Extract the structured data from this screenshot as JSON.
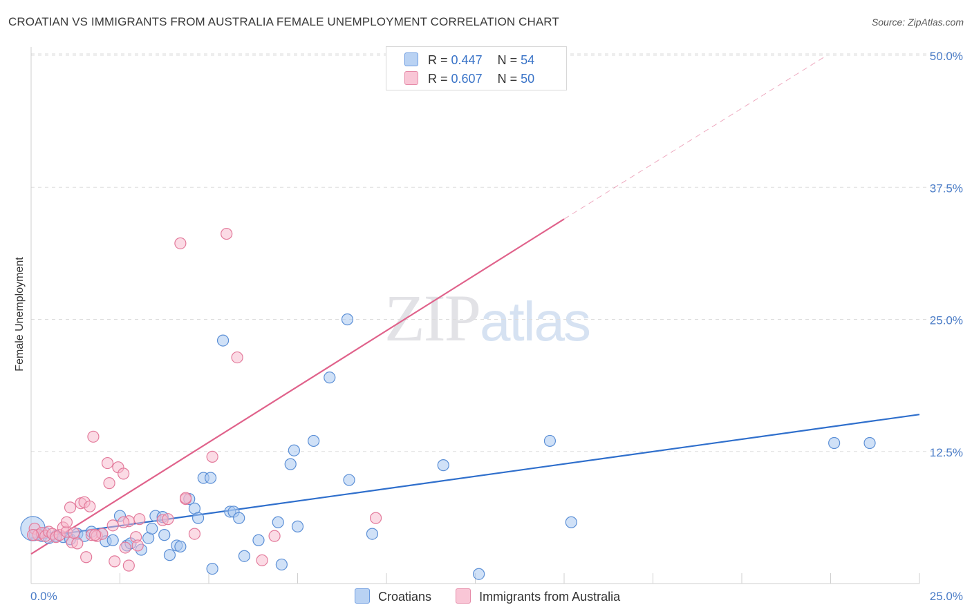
{
  "header": {
    "title": "CROATIAN VS IMMIGRANTS FROM AUSTRALIA FEMALE UNEMPLOYMENT CORRELATION CHART",
    "source": "Source: ZipAtlas.com"
  },
  "watermark": {
    "zip": "ZIP",
    "atlas": "atlas"
  },
  "legend": {
    "rows": [
      {
        "r_label": "R =",
        "r_value": "0.447",
        "n_label": "N =",
        "n_value": "54"
      },
      {
        "r_label": "R =",
        "r_value": "0.607",
        "n_label": "N =",
        "n_value": "50"
      }
    ]
  },
  "bottom_legend": {
    "items": [
      {
        "label": "Croatians"
      },
      {
        "label": "Immigrants from Australia"
      }
    ]
  },
  "chart_data": {
    "type": "scatter",
    "title": "CROATIAN VS IMMIGRANTS FROM AUSTRALIA FEMALE UNEMPLOYMENT CORRELATION CHART",
    "xlabel": "",
    "ylabel": "Female Unemployment",
    "xlim": [
      0,
      25
    ],
    "ylim": [
      0,
      50
    ],
    "x_tick_labels": [
      "0.0%",
      "25.0%"
    ],
    "y_ticks": [
      12.5,
      25.0,
      37.5,
      50.0
    ],
    "y_tick_labels": [
      "12.5%",
      "25.0%",
      "37.5%",
      "50.0%"
    ],
    "grid": true,
    "colors": {
      "croatians_fill": "#a9c8f0",
      "croatians_stroke": "#5b8fd6",
      "croatians_line": "#2f6fcc",
      "australia_fill": "#f7b7cb",
      "australia_stroke": "#e37a9b",
      "australia_line": "#e0628b",
      "grid": "#dddddd",
      "axis": "#cfcfcf"
    },
    "series": [
      {
        "name": "Croatians",
        "trend": {
          "x0": 0,
          "y0": 4.3,
          "x1": 25,
          "y1": 16.0
        },
        "points": [
          [
            0.1,
            4.6
          ],
          [
            0.3,
            4.5
          ],
          [
            0.4,
            4.8
          ],
          [
            0.5,
            4.3
          ],
          [
            0.7,
            4.5
          ],
          [
            0.9,
            4.4
          ],
          [
            1.1,
            4.2
          ],
          [
            1.3,
            4.7
          ],
          [
            1.5,
            4.5
          ],
          [
            1.7,
            4.9
          ],
          [
            2.0,
            4.7
          ],
          [
            2.1,
            4.0
          ],
          [
            2.3,
            4.1
          ],
          [
            2.5,
            6.4
          ],
          [
            2.7,
            3.6
          ],
          [
            2.8,
            3.8
          ],
          [
            3.1,
            3.2
          ],
          [
            3.3,
            4.3
          ],
          [
            3.4,
            5.2
          ],
          [
            3.5,
            6.4
          ],
          [
            3.7,
            6.3
          ],
          [
            3.75,
            4.6
          ],
          [
            3.9,
            2.7
          ],
          [
            4.1,
            3.6
          ],
          [
            4.2,
            3.5
          ],
          [
            4.45,
            8.0
          ],
          [
            4.6,
            7.1
          ],
          [
            4.7,
            6.2
          ],
          [
            4.85,
            10.0
          ],
          [
            5.05,
            10.0
          ],
          [
            5.1,
            1.4
          ],
          [
            5.4,
            23.0
          ],
          [
            5.6,
            6.8
          ],
          [
            5.7,
            6.8
          ],
          [
            5.85,
            6.2
          ],
          [
            6.0,
            2.6
          ],
          [
            6.4,
            4.1
          ],
          [
            6.95,
            5.8
          ],
          [
            7.05,
            1.8
          ],
          [
            7.5,
            5.4
          ],
          [
            7.3,
            11.3
          ],
          [
            7.4,
            12.6
          ],
          [
            7.95,
            13.5
          ],
          [
            8.4,
            19.5
          ],
          [
            8.9,
            25.0
          ],
          [
            8.95,
            9.8
          ],
          [
            9.6,
            4.7
          ],
          [
            11.6,
            11.2
          ],
          [
            12.6,
            0.9
          ],
          [
            14.6,
            13.5
          ],
          [
            15.2,
            5.8
          ],
          [
            22.6,
            13.3
          ],
          [
            23.6,
            13.3
          ],
          [
            0.05,
            5.2
          ]
        ],
        "sizes": [
          10,
          10,
          10,
          10,
          10,
          10,
          10,
          10,
          10,
          10,
          10,
          10,
          10,
          10,
          10,
          10,
          10,
          10,
          10,
          10,
          10,
          10,
          10,
          10,
          10,
          10,
          10,
          10,
          10,
          10,
          10,
          10,
          10,
          10,
          10,
          10,
          10,
          10,
          10,
          10,
          10,
          10,
          10,
          10,
          10,
          10,
          10,
          10,
          10,
          10,
          10,
          10,
          10,
          22
        ]
      },
      {
        "name": "Immigrants from Australia",
        "trend": {
          "x0": 0,
          "y0": 2.8,
          "x1": 15,
          "y1": 34.5
        },
        "trend_extension": {
          "x0": 15,
          "y0": 34.5,
          "x1": 22.4,
          "y1": 50.0
        },
        "points": [
          [
            0.1,
            5.2
          ],
          [
            0.2,
            4.6
          ],
          [
            0.3,
            4.8
          ],
          [
            0.4,
            4.5
          ],
          [
            0.5,
            4.9
          ],
          [
            0.6,
            4.7
          ],
          [
            0.7,
            4.4
          ],
          [
            0.8,
            4.6
          ],
          [
            0.9,
            5.3
          ],
          [
            1.0,
            4.9
          ],
          [
            1.0,
            5.8
          ],
          [
            1.1,
            7.2
          ],
          [
            1.15,
            3.9
          ],
          [
            1.2,
            4.8
          ],
          [
            1.3,
            3.8
          ],
          [
            1.4,
            7.6
          ],
          [
            1.5,
            7.7
          ],
          [
            1.55,
            2.5
          ],
          [
            1.65,
            7.3
          ],
          [
            1.7,
            4.6
          ],
          [
            1.75,
            13.9
          ],
          [
            1.85,
            4.5
          ],
          [
            2.0,
            4.7
          ],
          [
            2.15,
            11.4
          ],
          [
            2.2,
            9.5
          ],
          [
            2.3,
            5.5
          ],
          [
            2.35,
            2.1
          ],
          [
            2.45,
            11.0
          ],
          [
            2.6,
            10.4
          ],
          [
            2.65,
            3.4
          ],
          [
            2.75,
            1.7
          ],
          [
            2.75,
            5.9
          ],
          [
            2.95,
            4.4
          ],
          [
            3.0,
            3.6
          ],
          [
            3.05,
            6.1
          ],
          [
            3.7,
            6.0
          ],
          [
            3.85,
            6.1
          ],
          [
            4.2,
            32.2
          ],
          [
            4.35,
            8.0
          ],
          [
            4.35,
            8.1
          ],
          [
            4.6,
            4.7
          ],
          [
            5.1,
            12.0
          ],
          [
            5.5,
            33.1
          ],
          [
            5.8,
            21.4
          ],
          [
            6.5,
            2.2
          ],
          [
            6.85,
            4.5
          ],
          [
            9.7,
            6.2
          ],
          [
            0.05,
            4.6
          ],
          [
            1.8,
            4.6
          ],
          [
            2.6,
            5.8
          ]
        ]
      }
    ]
  }
}
